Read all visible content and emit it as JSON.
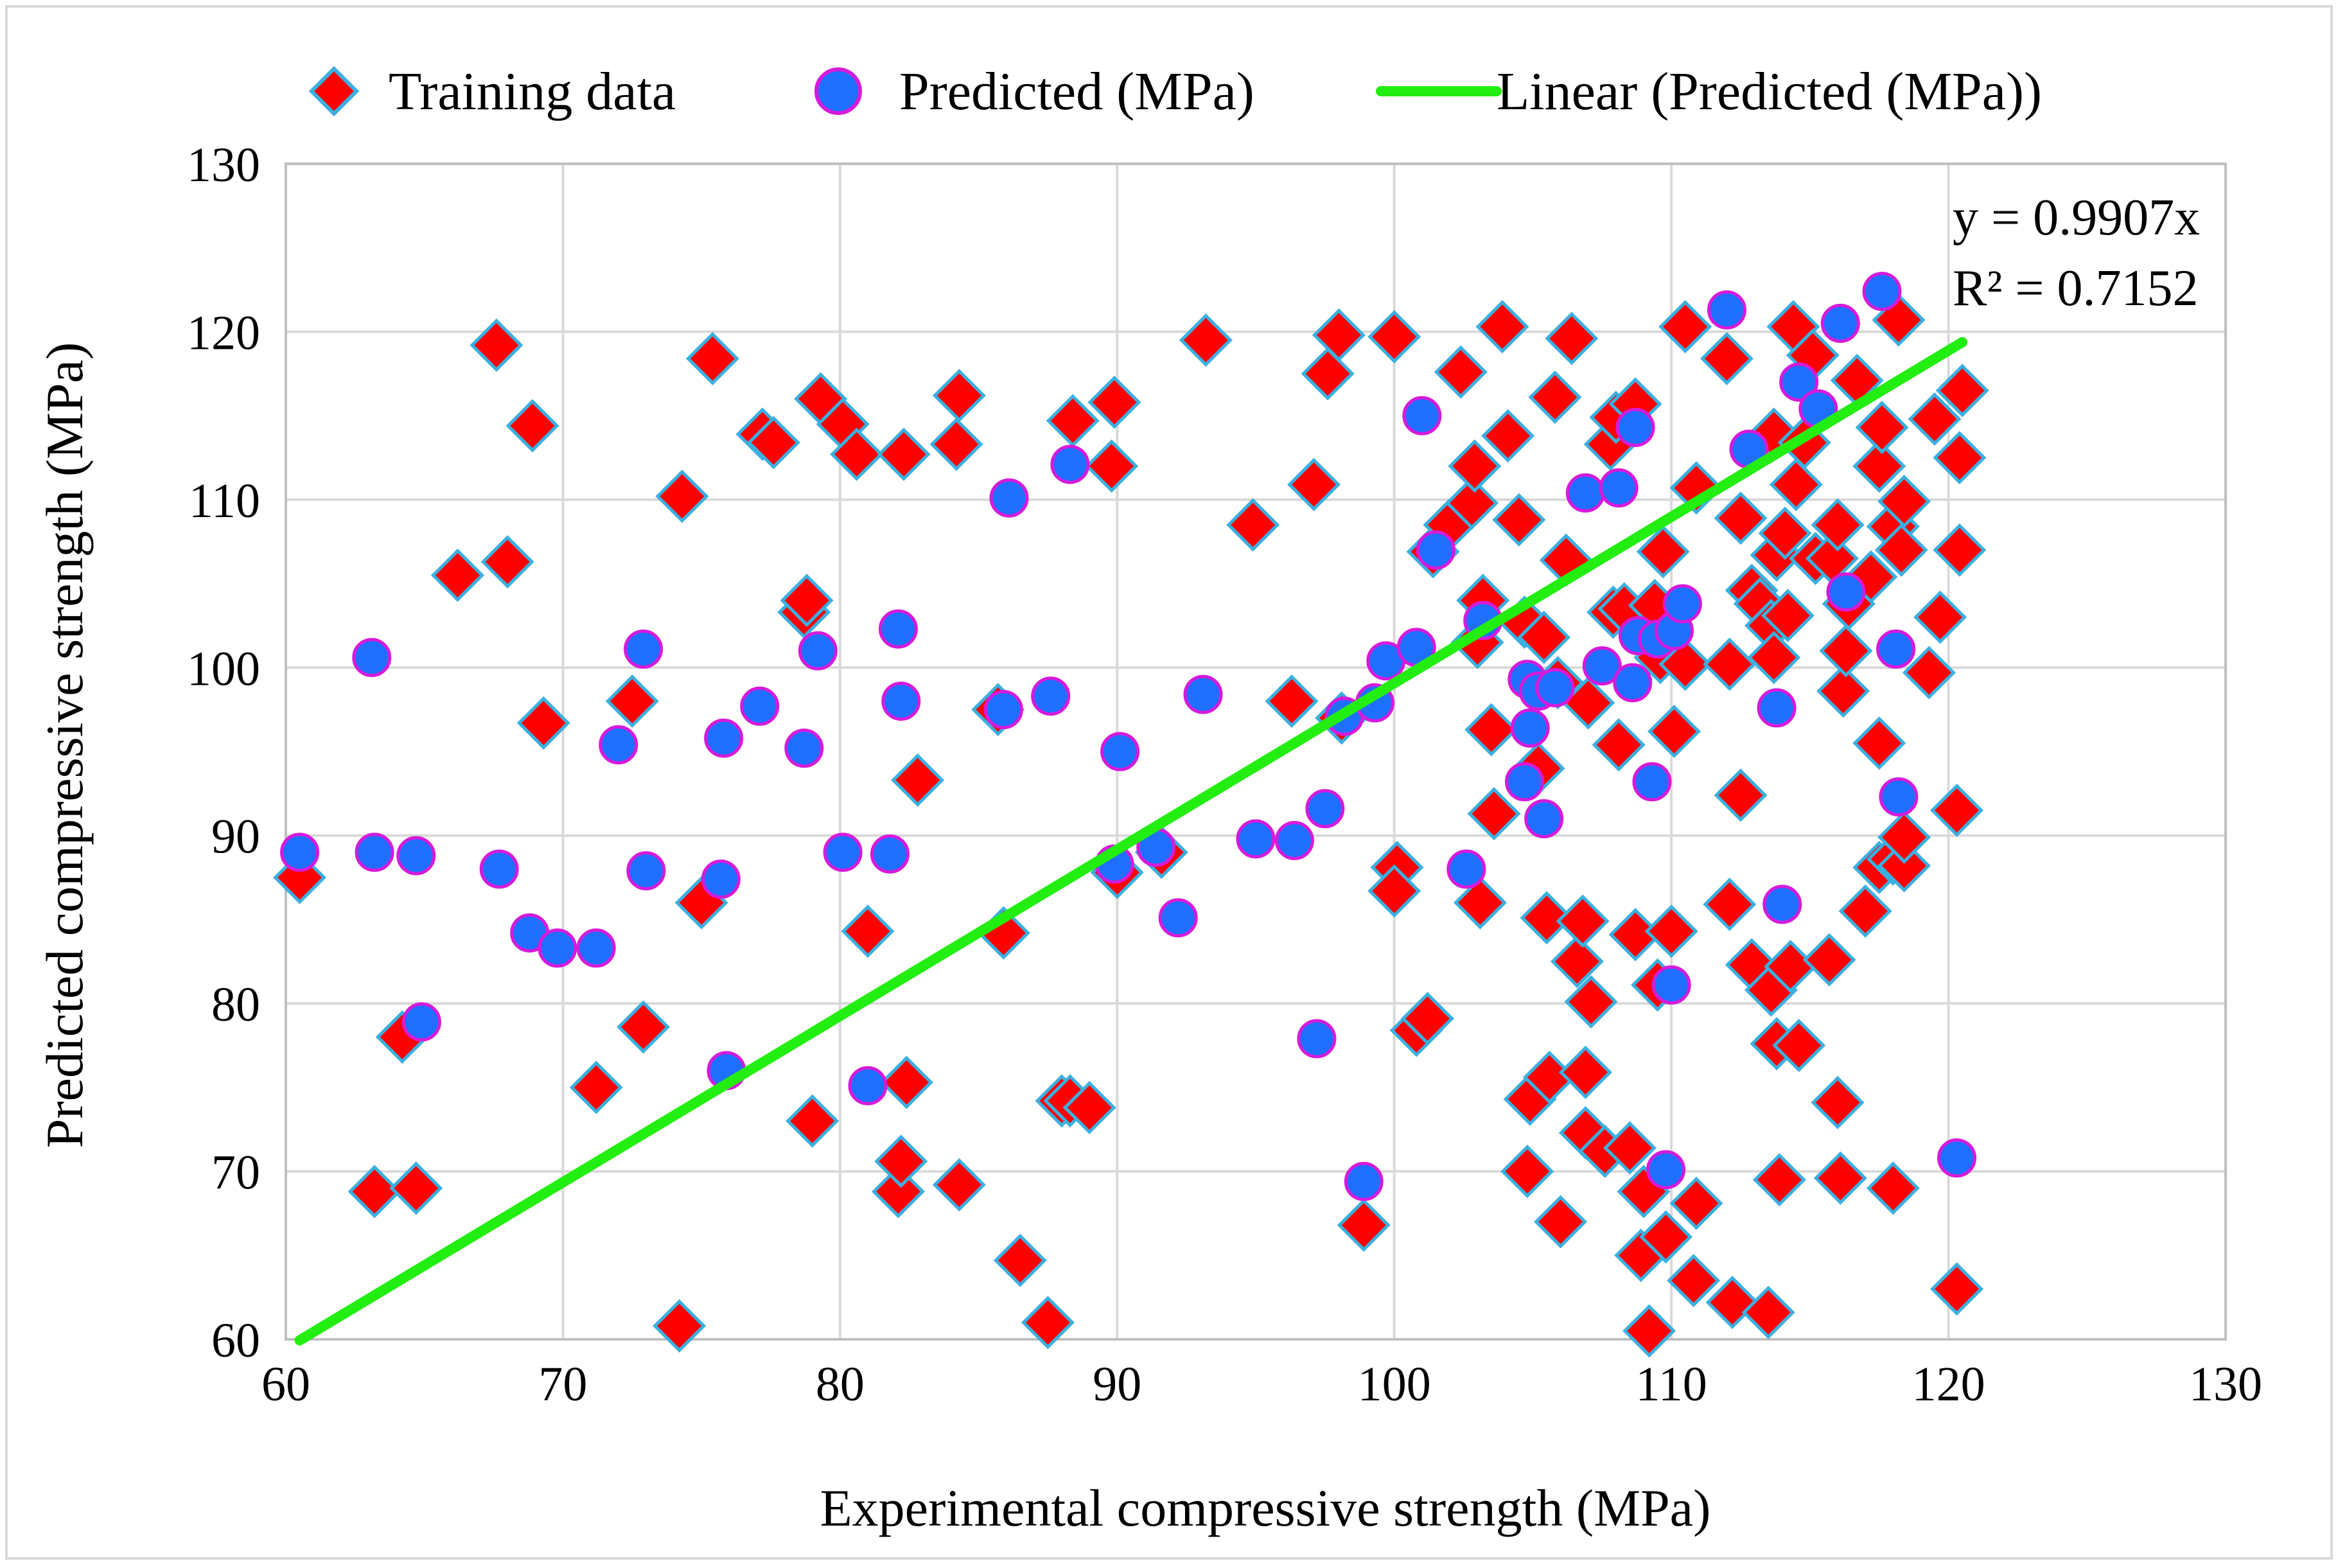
{
  "colors": {
    "training_fill": "#ff0000",
    "training_stroke": "#3ab0e0",
    "predicted_fill": "#1f6fff",
    "predicted_stroke": "#d61adb",
    "trend": "#22ee11",
    "grid": "#d9d9d9",
    "frame": "#bfbfbf"
  },
  "icons": {
    "training_marker": "diamond-marker-icon",
    "predicted_marker": "circle-marker-icon",
    "trend_marker": "line-marker-icon"
  },
  "chart_data": {
    "type": "scatter",
    "xlabel": "Experimental compressive strength (MPa)",
    "ylabel": "Predicted compressive strength (MPa)",
    "xlim": [
      60,
      130
    ],
    "ylim": [
      60,
      130
    ],
    "xticks": [
      "60",
      "70",
      "80",
      "90",
      "100",
      "110",
      "120",
      "130"
    ],
    "yticks": [
      "60",
      "70",
      "80",
      "90",
      "100",
      "110",
      "120",
      "130"
    ],
    "grid": true,
    "legend_position": "top",
    "legend": [
      "Training data",
      "Predicted (MPa)",
      "Linear (Predicted (MPa))"
    ],
    "annotation": {
      "equation": "y = 0.9907x",
      "r_squared": "R² = 0.7152"
    },
    "series": [
      {
        "name": "Training data",
        "marker": "diamond",
        "points": [
          [
            60.5,
            87.5
          ],
          [
            63.2,
            68.8
          ],
          [
            64.2,
            78.0
          ],
          [
            64.7,
            69.0
          ],
          [
            66.2,
            105.5
          ],
          [
            67.6,
            119.2
          ],
          [
            68.0,
            106.3
          ],
          [
            68.9,
            114.4
          ],
          [
            69.3,
            96.7
          ],
          [
            71.2,
            75.0
          ],
          [
            72.5,
            98.0
          ],
          [
            72.9,
            78.6
          ],
          [
            74.2,
            60.8
          ],
          [
            74.3,
            110.2
          ],
          [
            75.0,
            86.0
          ],
          [
            75.4,
            118.4
          ],
          [
            77.2,
            113.9
          ],
          [
            77.6,
            113.4
          ],
          [
            78.7,
            103.3
          ],
          [
            78.8,
            104.0
          ],
          [
            79.0,
            73.0
          ],
          [
            79.3,
            116.0
          ],
          [
            80.1,
            114.5
          ],
          [
            80.6,
            112.7
          ],
          [
            81.0,
            84.3
          ],
          [
            82.1,
            68.8
          ],
          [
            82.2,
            70.6
          ],
          [
            82.3,
            112.7
          ],
          [
            82.4,
            75.3
          ],
          [
            82.8,
            93.3
          ],
          [
            84.2,
            113.3
          ],
          [
            84.3,
            116.2
          ],
          [
            84.3,
            69.2
          ],
          [
            85.7,
            97.5
          ],
          [
            85.9,
            84.2
          ],
          [
            86.5,
            64.7
          ],
          [
            87.5,
            61.0
          ],
          [
            88.0,
            74.2
          ],
          [
            88.3,
            74.2
          ],
          [
            88.4,
            114.7
          ],
          [
            89.0,
            73.8
          ],
          [
            89.8,
            112.0
          ],
          [
            89.9,
            115.8
          ],
          [
            90.0,
            87.8
          ],
          [
            91.6,
            89.0
          ],
          [
            93.2,
            119.5
          ],
          [
            94.9,
            108.5
          ],
          [
            96.3,
            98.0
          ],
          [
            97.1,
            110.9
          ],
          [
            97.6,
            117.5
          ],
          [
            98.0,
            119.8
          ],
          [
            98.1,
            97.0
          ],
          [
            98.9,
            66.8
          ],
          [
            100.0,
            119.7
          ],
          [
            100.1,
            88.1
          ],
          [
            100.0,
            86.7
          ],
          [
            100.8,
            78.4
          ],
          [
            101.2,
            79.1
          ],
          [
            101.4,
            106.9
          ],
          [
            102.0,
            108.5
          ],
          [
            102.4,
            117.6
          ],
          [
            102.8,
            109.8
          ],
          [
            102.9,
            112.0
          ],
          [
            103.0,
            101.5
          ],
          [
            103.1,
            86.0
          ],
          [
            103.2,
            104.0
          ],
          [
            103.5,
            96.3
          ],
          [
            103.6,
            91.3
          ],
          [
            103.9,
            120.3
          ],
          [
            104.1,
            113.8
          ],
          [
            104.5,
            108.8
          ],
          [
            104.7,
            102.7
          ],
          [
            104.8,
            70.0
          ],
          [
            104.9,
            74.3
          ],
          [
            105.2,
            94.0
          ],
          [
            105.4,
            101.8
          ],
          [
            105.5,
            85.1
          ],
          [
            105.6,
            75.6
          ],
          [
            105.8,
            116.1
          ],
          [
            105.9,
            99.1
          ],
          [
            106.0,
            67.0
          ],
          [
            106.2,
            106.4
          ],
          [
            106.4,
            119.6
          ],
          [
            106.6,
            82.5
          ],
          [
            106.8,
            84.9
          ],
          [
            106.9,
            72.3
          ],
          [
            106.9,
            75.9
          ],
          [
            107.0,
            97.9
          ],
          [
            107.1,
            80.1
          ],
          [
            107.6,
            71.2
          ],
          [
            107.8,
            113.3
          ],
          [
            107.9,
            103.3
          ],
          [
            108.0,
            114.9
          ],
          [
            108.1,
            95.4
          ],
          [
            108.3,
            103.5
          ],
          [
            108.5,
            71.4
          ],
          [
            108.7,
            84.1
          ],
          [
            108.7,
            115.7
          ],
          [
            108.9,
            65.0
          ],
          [
            109.0,
            68.8
          ],
          [
            109.2,
            60.5
          ],
          [
            109.4,
            103.7
          ],
          [
            109.5,
            81.1
          ],
          [
            109.6,
            100.6
          ],
          [
            109.7,
            106.9
          ],
          [
            109.8,
            66.1
          ],
          [
            110.0,
            84.3
          ],
          [
            110.1,
            96.2
          ],
          [
            110.5,
            100.2
          ],
          [
            110.5,
            120.3
          ],
          [
            110.8,
            63.5
          ],
          [
            110.9,
            68.1
          ],
          [
            110.9,
            110.7
          ],
          [
            112.0,
            118.4
          ],
          [
            112.1,
            85.9
          ],
          [
            112.2,
            62.2
          ],
          [
            112.1,
            100.2
          ],
          [
            112.5,
            108.9
          ],
          [
            112.5,
            92.4
          ],
          [
            112.9,
            104.6
          ],
          [
            112.9,
            82.3
          ],
          [
            113.2,
            103.8
          ],
          [
            113.5,
            61.6
          ],
          [
            113.6,
            80.8
          ],
          [
            113.6,
            102.5
          ],
          [
            113.7,
            113.9
          ],
          [
            113.7,
            100.6
          ],
          [
            113.8,
            106.7
          ],
          [
            113.8,
            77.6
          ],
          [
            113.9,
            69.5
          ],
          [
            114.1,
            108.0
          ],
          [
            114.2,
            103.1
          ],
          [
            114.3,
            82.2
          ],
          [
            114.4,
            120.3
          ],
          [
            114.5,
            110.9
          ],
          [
            114.6,
            77.5
          ],
          [
            114.8,
            113.4
          ],
          [
            115.1,
            118.6
          ],
          [
            115.2,
            106.5
          ],
          [
            115.7,
            82.6
          ],
          [
            115.8,
            106.5
          ],
          [
            116.0,
            108.5
          ],
          [
            116.0,
            74.1
          ],
          [
            116.1,
            69.6
          ],
          [
            116.2,
            98.6
          ],
          [
            116.3,
            101.0
          ],
          [
            116.4,
            103.8
          ],
          [
            116.7,
            117.1
          ],
          [
            117.0,
            85.5
          ],
          [
            117.2,
            105.4
          ],
          [
            117.5,
            88.1
          ],
          [
            117.5,
            95.5
          ],
          [
            117.5,
            112.0
          ],
          [
            117.6,
            114.3
          ],
          [
            118.0,
            108.4
          ],
          [
            118.0,
            88.6
          ],
          [
            118.0,
            69.0
          ],
          [
            118.2,
            120.7
          ],
          [
            118.3,
            107.0
          ],
          [
            118.4,
            109.9
          ],
          [
            118.4,
            88.2
          ],
          [
            118.4,
            89.9
          ],
          [
            119.3,
            99.7
          ],
          [
            119.5,
            114.8
          ],
          [
            119.7,
            103.0
          ],
          [
            120.3,
            91.5
          ],
          [
            120.3,
            63.0
          ],
          [
            120.4,
            107.0
          ],
          [
            120.4,
            112.5
          ],
          [
            120.5,
            116.5
          ]
        ]
      },
      {
        "name": "Predicted (MPa)",
        "marker": "circle",
        "points": [
          [
            60.5,
            89.0
          ],
          [
            63.1,
            100.6
          ],
          [
            63.2,
            89.0
          ],
          [
            64.7,
            88.8
          ],
          [
            64.9,
            78.9
          ],
          [
            67.7,
            88.0
          ],
          [
            68.8,
            84.2
          ],
          [
            69.8,
            83.3
          ],
          [
            71.2,
            83.3
          ],
          [
            72.0,
            95.4
          ],
          [
            72.9,
            101.1
          ],
          [
            73.0,
            87.9
          ],
          [
            75.7,
            87.4
          ],
          [
            75.8,
            95.8
          ],
          [
            75.9,
            76.0
          ],
          [
            77.1,
            97.7
          ],
          [
            78.7,
            95.2
          ],
          [
            79.2,
            101.0
          ],
          [
            80.1,
            89.0
          ],
          [
            81.0,
            75.1
          ],
          [
            81.8,
            88.9
          ],
          [
            82.1,
            102.3
          ],
          [
            82.2,
            98.0
          ],
          [
            85.9,
            97.5
          ],
          [
            86.1,
            110.1
          ],
          [
            87.6,
            98.3
          ],
          [
            88.3,
            112.1
          ],
          [
            89.9,
            88.3
          ],
          [
            90.1,
            95.0
          ],
          [
            91.4,
            89.3
          ],
          [
            92.2,
            85.1
          ],
          [
            93.1,
            98.4
          ],
          [
            95.0,
            89.8
          ],
          [
            96.4,
            89.7
          ],
          [
            97.2,
            77.9
          ],
          [
            97.5,
            91.6
          ],
          [
            98.2,
            97.1
          ],
          [
            98.9,
            69.4
          ],
          [
            99.3,
            97.9
          ],
          [
            99.7,
            100.4
          ],
          [
            100.8,
            101.2
          ],
          [
            101.0,
            115.0
          ],
          [
            101.5,
            107.0
          ],
          [
            102.6,
            88.0
          ],
          [
            103.2,
            102.8
          ],
          [
            104.7,
            93.2
          ],
          [
            104.8,
            99.3
          ],
          [
            104.9,
            96.4
          ],
          [
            105.2,
            98.6
          ],
          [
            105.4,
            91.0
          ],
          [
            105.8,
            98.8
          ],
          [
            106.9,
            110.4
          ],
          [
            107.5,
            100.1
          ],
          [
            108.1,
            110.7
          ],
          [
            108.6,
            99.1
          ],
          [
            108.7,
            114.3
          ],
          [
            108.8,
            101.9
          ],
          [
            109.3,
            93.2
          ],
          [
            109.5,
            101.7
          ],
          [
            109.8,
            70.1
          ],
          [
            110.0,
            81.1
          ],
          [
            110.1,
            102.2
          ],
          [
            110.4,
            103.8
          ],
          [
            112.0,
            121.3
          ],
          [
            112.8,
            113.0
          ],
          [
            113.8,
            97.6
          ],
          [
            114.0,
            85.9
          ],
          [
            114.6,
            117.0
          ],
          [
            115.3,
            115.4
          ],
          [
            116.1,
            120.5
          ],
          [
            116.3,
            104.5
          ],
          [
            117.6,
            122.4
          ],
          [
            118.1,
            101.1
          ],
          [
            118.2,
            92.3
          ],
          [
            120.3,
            70.8
          ]
        ]
      },
      {
        "name": "Linear (Predicted (MPa))",
        "type": "line",
        "slope": 0.9907,
        "x": [
          60.5,
          120.5
        ],
        "y": [
          59.94,
          119.38
        ]
      }
    ]
  }
}
